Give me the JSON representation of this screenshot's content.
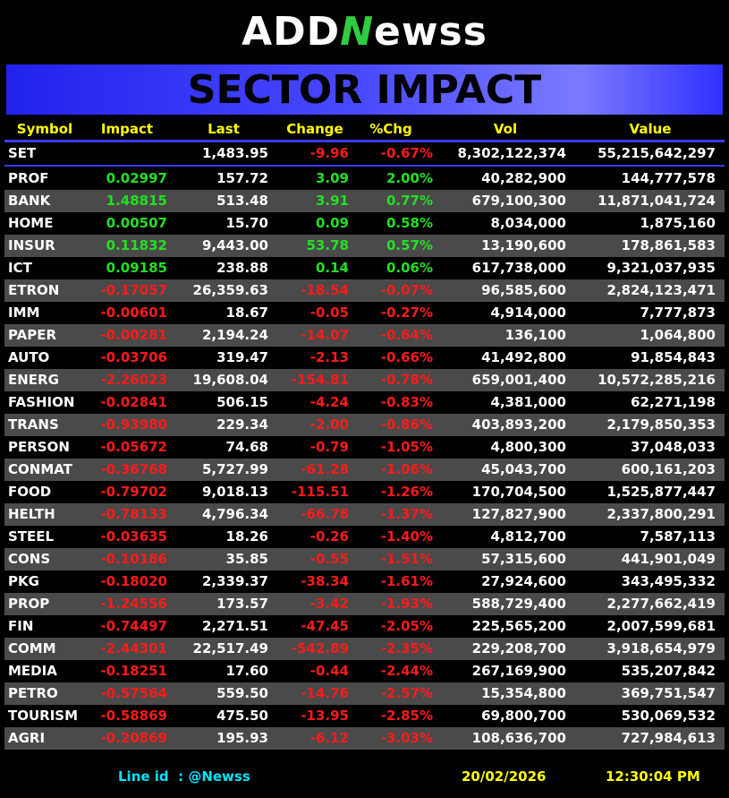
{
  "logo": {
    "parts": [
      "ADD",
      "N",
      "ewss"
    ]
  },
  "banner": {
    "title": "SECTOR IMPACT"
  },
  "table": {
    "columns": [
      "Symbol",
      "Impact",
      "Last",
      "Change",
      "%Chg",
      "Vol",
      "Value"
    ],
    "index_row": [
      "SET",
      null,
      "1,483.95",
      "-9.96",
      "-0.67%",
      "8,302,122,374",
      "55,215,642,297"
    ],
    "rows": [
      [
        "PROF",
        "0.02997",
        "157.72",
        "3.09",
        "2.00%",
        "40,282,900",
        "144,777,578"
      ],
      [
        "BANK",
        "1.48815",
        "513.48",
        "3.91",
        "0.77%",
        "679,100,300",
        "11,871,041,724"
      ],
      [
        "HOME",
        "0.00507",
        "15.70",
        "0.09",
        "0.58%",
        "8,034,000",
        "1,875,160"
      ],
      [
        "INSUR",
        "0.11832",
        "9,443.00",
        "53.78",
        "0.57%",
        "13,190,600",
        "178,861,583"
      ],
      [
        "ICT",
        "0.09185",
        "238.88",
        "0.14",
        "0.06%",
        "617,738,000",
        "9,321,037,935"
      ],
      [
        "ETRON",
        "-0.17057",
        "26,359.63",
        "-18.54",
        "-0.07%",
        "96,585,600",
        "2,824,123,471"
      ],
      [
        "IMM",
        "-0.00601",
        "18.67",
        "-0.05",
        "-0.27%",
        "4,914,000",
        "7,777,873"
      ],
      [
        "PAPER",
        "-0.00281",
        "2,194.24",
        "-14.07",
        "-0.64%",
        "136,100",
        "1,064,800"
      ],
      [
        "AUTO",
        "-0.03706",
        "319.47",
        "-2.13",
        "-0.66%",
        "41,492,800",
        "91,854,843"
      ],
      [
        "ENERG",
        "-2.26023",
        "19,608.04",
        "-154.81",
        "-0.78%",
        "659,001,400",
        "10,572,285,216"
      ],
      [
        "FASHION",
        "-0.02841",
        "506.15",
        "-4.24",
        "-0.83%",
        "4,381,000",
        "62,271,198"
      ],
      [
        "TRANS",
        "-0.93980",
        "229.34",
        "-2.00",
        "-0.86%",
        "403,893,200",
        "2,179,850,353"
      ],
      [
        "PERSON",
        "-0.05672",
        "74.68",
        "-0.79",
        "-1.05%",
        "4,800,300",
        "37,048,033"
      ],
      [
        "CONMAT",
        "-0.36768",
        "5,727.99",
        "-61.28",
        "-1.06%",
        "45,043,700",
        "600,161,203"
      ],
      [
        "FOOD",
        "-0.79702",
        "9,018.13",
        "-115.51",
        "-1.26%",
        "170,704,500",
        "1,525,877,447"
      ],
      [
        "HELTH",
        "-0.78133",
        "4,796.34",
        "-66.78",
        "-1.37%",
        "127,827,900",
        "2,337,800,291"
      ],
      [
        "STEEL",
        "-0.03635",
        "18.26",
        "-0.26",
        "-1.40%",
        "4,812,700",
        "7,587,113"
      ],
      [
        "CONS",
        "-0.10186",
        "35.85",
        "-0.55",
        "-1.51%",
        "57,315,600",
        "441,901,049"
      ],
      [
        "PKG",
        "-0.18020",
        "2,339.37",
        "-38.34",
        "-1.61%",
        "27,924,600",
        "343,495,332"
      ],
      [
        "PROP",
        "-1.24556",
        "173.57",
        "-3.42",
        "-1.93%",
        "588,729,400",
        "2,277,662,419"
      ],
      [
        "FIN",
        "-0.74497",
        "2,271.51",
        "-47.45",
        "-2.05%",
        "225,565,200",
        "2,007,599,681"
      ],
      [
        "COMM",
        "-2.44301",
        "22,517.49",
        "-542.89",
        "-2.35%",
        "229,208,700",
        "3,918,654,979"
      ],
      [
        "MEDIA",
        "-0.18251",
        "17.60",
        "-0.44",
        "-2.44%",
        "267,169,900",
        "535,207,842"
      ],
      [
        "PETRO",
        "-0.57564",
        "559.50",
        "-14.76",
        "-2.57%",
        "15,354,800",
        "369,751,547"
      ],
      [
        "TOURISM",
        "-0.58869",
        "475.50",
        "-13.95",
        "-2.85%",
        "69,800,700",
        "530,069,532"
      ],
      [
        "AGRI",
        "-0.20869",
        "195.93",
        "-6.12",
        "-3.03%",
        "108,636,700",
        "727,984,613"
      ]
    ]
  },
  "footer": {
    "line_id": "Line id  : @Newss",
    "date": "20/02/2026",
    "time": "12:30:04 PM"
  }
}
